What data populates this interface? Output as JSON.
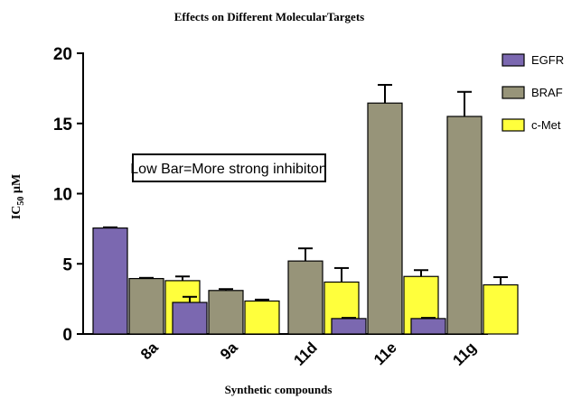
{
  "chart_data": {
    "type": "bar",
    "title": "Effects on Different MolecularTargets",
    "xlabel": "Synthetic compounds",
    "ylabel_main": "IC",
    "ylabel_sub": "50",
    "ylabel_unit": " µM",
    "categories": [
      "8a",
      "9a",
      "11d",
      "11e",
      "11g"
    ],
    "ylim": [
      0,
      20
    ],
    "yticks": [
      "0",
      "5",
      "10",
      "15",
      "20"
    ],
    "series": [
      {
        "name": "EGFR",
        "color": "#7b68b0",
        "values": [
          7.55,
          2.25,
          null,
          1.1,
          1.1
        ],
        "errors": [
          0.05,
          0.4,
          null,
          0.05,
          0.05
        ]
      },
      {
        "name": "BRAF",
        "color": "#979479",
        "values": [
          3.95,
          3.1,
          5.2,
          16.45,
          15.5
        ],
        "errors": [
          0.05,
          0.1,
          0.9,
          1.3,
          1.75
        ]
      },
      {
        "name": "c-Met",
        "color": "#ffff3c",
        "values": [
          3.8,
          2.35,
          3.7,
          4.1,
          3.5
        ],
        "errors": [
          0.3,
          0.1,
          1.0,
          0.45,
          0.55
        ]
      }
    ],
    "annotation": "Low Bar=More strong inhibiton",
    "legend_position": "right",
    "grid": false
  }
}
